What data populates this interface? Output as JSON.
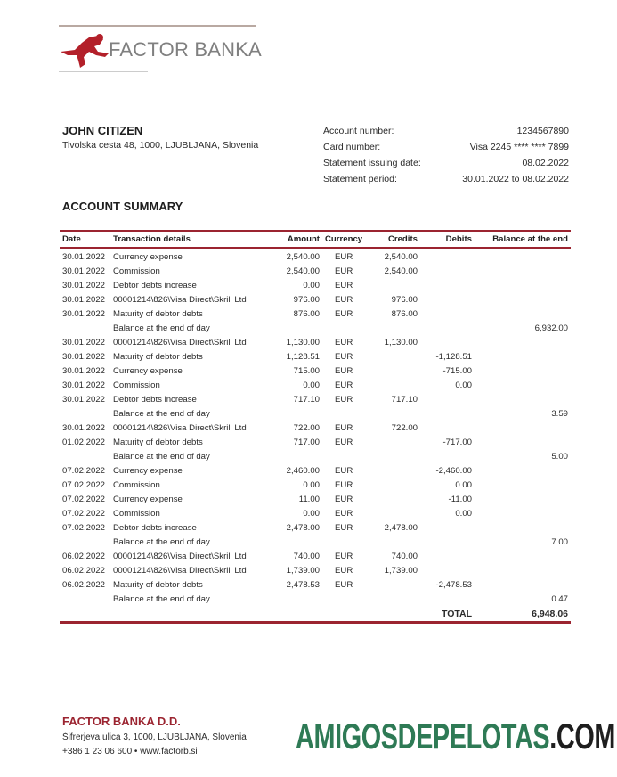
{
  "bank": {
    "logo_text": "FACTOR BANKA",
    "brand_color": "#9b2430"
  },
  "customer": {
    "name": "JOHN CITIZEN",
    "address": "Tivolska cesta 48, 1000, LJUBLJANA, Slovenia"
  },
  "info": [
    {
      "label": "Account number:",
      "value": "1234567890"
    },
    {
      "label": "Card number:",
      "value": "Visa 2245 **** **** 7899"
    },
    {
      "label": "Statement issuing date:",
      "value": "08.02.2022"
    },
    {
      "label": "Statement period:",
      "value": "30.01.2022 to 08.02.2022"
    }
  ],
  "summary_title": "ACCOUNT SUMMARY",
  "table": {
    "headers": [
      "Date",
      "Transaction details",
      "Amount",
      "Currency",
      "Credits",
      "Debits",
      "Balance at the end"
    ],
    "rows": [
      [
        "30.01.2022",
        "Currency expense",
        "2,540.00",
        "EUR",
        "2,540.00",
        "",
        ""
      ],
      [
        "30.01.2022",
        "Commission",
        "2,540.00",
        "EUR",
        "2,540.00",
        "",
        ""
      ],
      [
        "30.01.2022",
        "Debtor debts increase",
        "0.00",
        "EUR",
        "",
        "",
        ""
      ],
      [
        "30.01.2022",
        "00001214\\826\\Visa Direct\\Skrill Ltd",
        "976.00",
        "EUR",
        "976.00",
        "",
        ""
      ],
      [
        "30.01.2022",
        "Maturity of debtor debts",
        "876.00",
        "EUR",
        "876.00",
        "",
        ""
      ],
      [
        "",
        "Balance at the end of day",
        "",
        "",
        "",
        "",
        "6,932.00"
      ],
      [
        "30.01.2022",
        "00001214\\826\\Visa Direct\\Skrill Ltd",
        "1,130.00",
        "EUR",
        "1,130.00",
        "",
        ""
      ],
      [
        "30.01.2022",
        "Maturity of debtor debts",
        "1,128.51",
        "EUR",
        "",
        "-1,128.51",
        ""
      ],
      [
        "30.01.2022",
        "Currency expense",
        "715.00",
        "EUR",
        "",
        "-715.00",
        ""
      ],
      [
        "30.01.2022",
        "Commission",
        "0.00",
        "EUR",
        "",
        "0.00",
        ""
      ],
      [
        "30.01.2022",
        "Debtor debts increase",
        "717.10",
        "EUR",
        "717.10",
        "",
        ""
      ],
      [
        "",
        "Balance at the end of day",
        "",
        "",
        "",
        "",
        "3.59"
      ],
      [
        "30.01.2022",
        "00001214\\826\\Visa Direct\\Skrill Ltd",
        "722.00",
        "EUR",
        "722.00",
        "",
        ""
      ],
      [
        "01.02.2022",
        "Maturity of debtor debts",
        "717.00",
        "EUR",
        "",
        "-717.00",
        ""
      ],
      [
        "",
        "Balance at the end of day",
        "",
        "",
        "",
        "",
        "5.00"
      ],
      [
        "07.02.2022",
        "Currency expense",
        "2,460.00",
        "EUR",
        "",
        "-2,460.00",
        ""
      ],
      [
        "07.02.2022",
        "Commission",
        "0.00",
        "EUR",
        "",
        "0.00",
        ""
      ],
      [
        "07.02.2022",
        "Currency expense",
        "11.00",
        "EUR",
        "",
        "-11.00",
        ""
      ],
      [
        "07.02.2022",
        "Commission",
        "0.00",
        "EUR",
        "",
        "0.00",
        ""
      ],
      [
        "07.02.2022",
        "Debtor debts increase",
        "2,478.00",
        "EUR",
        "2,478.00",
        "",
        ""
      ],
      [
        "",
        "Balance at the end of day",
        "",
        "",
        "",
        "",
        "7.00"
      ],
      [
        "06.02.2022",
        "00001214\\826\\Visa Direct\\Skrill Ltd",
        "740.00",
        "EUR",
        "740.00",
        "",
        ""
      ],
      [
        "06.02.2022",
        "00001214\\826\\Visa Direct\\Skrill Ltd",
        "1,739.00",
        "EUR",
        "1,739.00",
        "",
        ""
      ],
      [
        "06.02.2022",
        "Maturity of debtor debts",
        "2,478.53",
        "EUR",
        "",
        "-2,478.53",
        ""
      ],
      [
        "",
        "Balance at the end of day",
        "",
        "",
        "",
        "",
        "0.47"
      ]
    ],
    "total_label": "TOTAL",
    "total_value": "6,948.06"
  },
  "footer": {
    "bank_name": "FACTOR BANKA D.D.",
    "address": "Šifrerjeva ulica 3, 1000, LJUBLJANA, Slovenia",
    "contact": "+386 1 23 06 600 • www.factorb.si"
  },
  "watermark": {
    "main": "AMIGOSDEPELOTAS",
    "suffix": ".COM",
    "main_color": "#2e7a55",
    "suffix_color": "#1e1e1e"
  }
}
